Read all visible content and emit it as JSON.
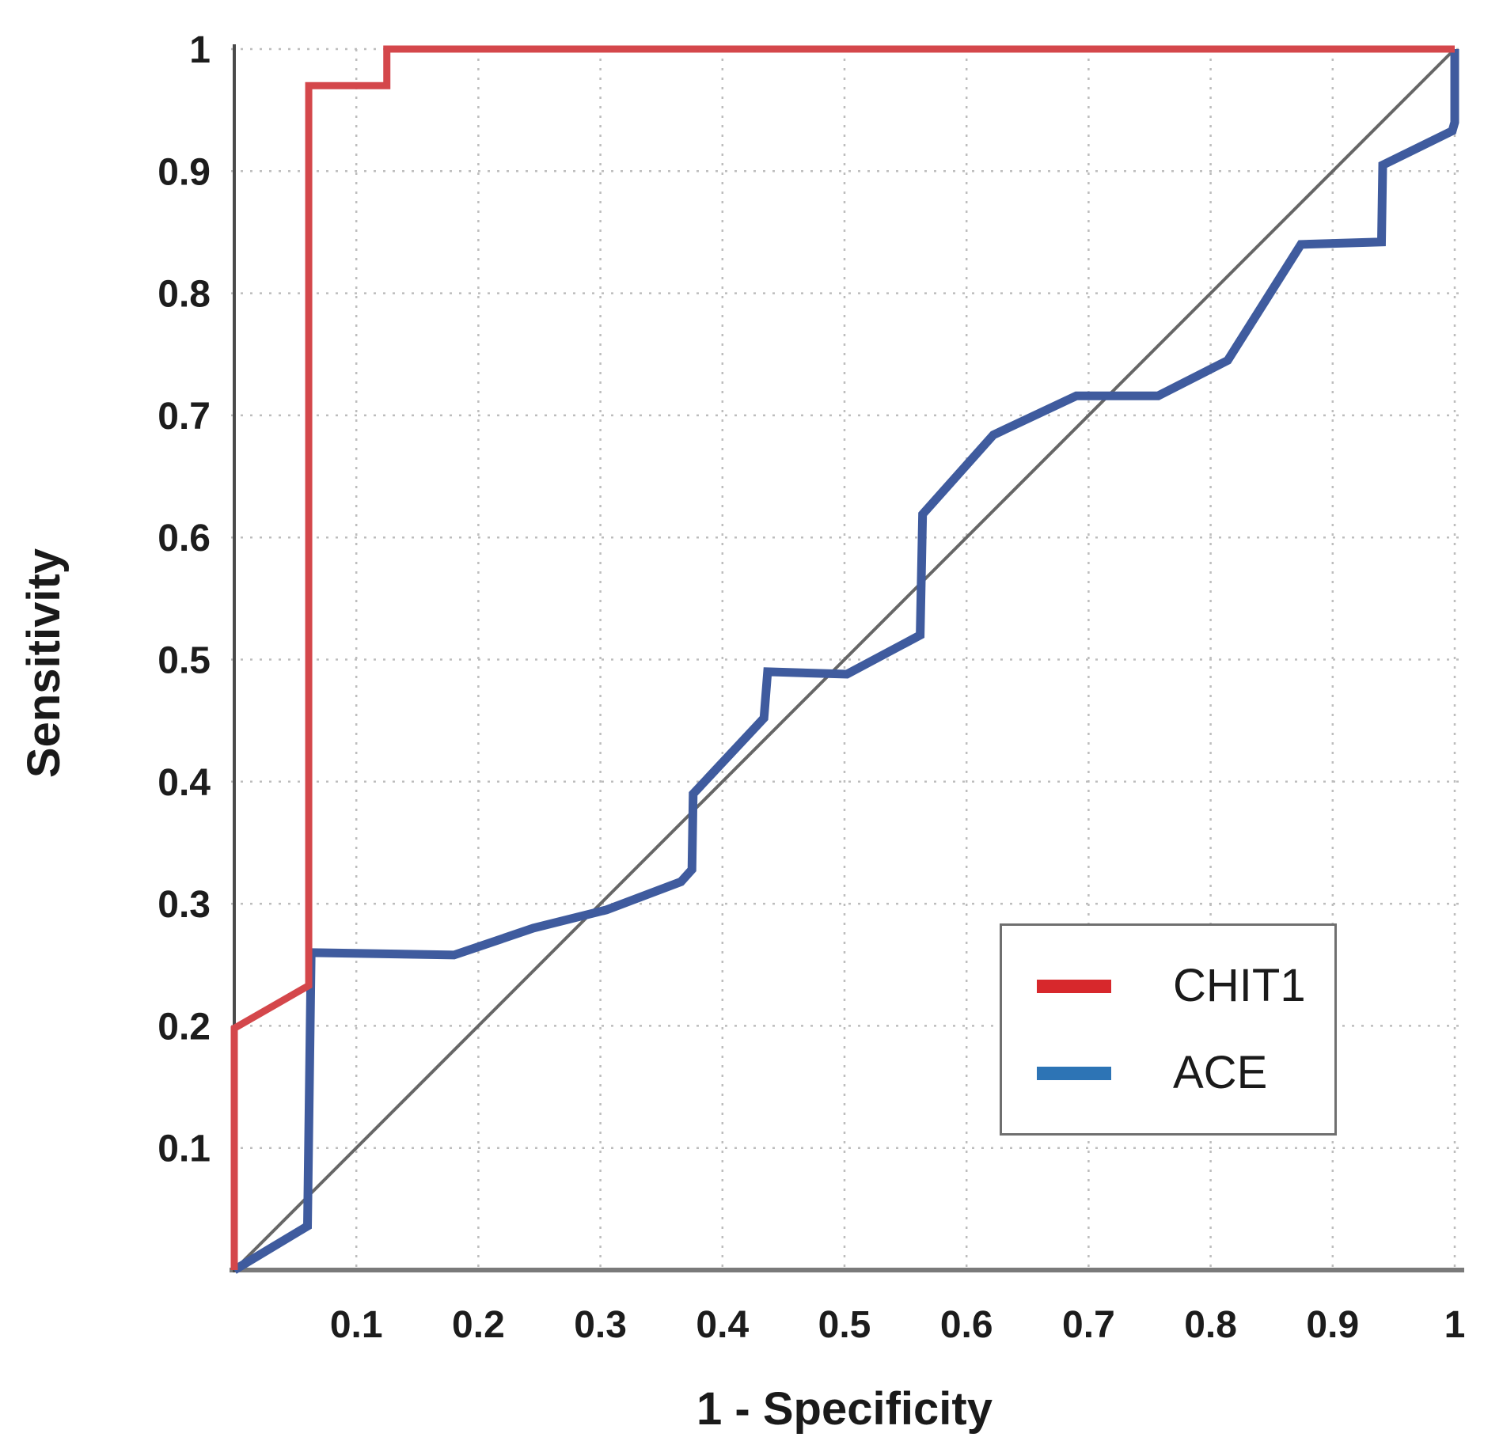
{
  "figure": {
    "background_color": "#ffffff"
  },
  "chart_data": {
    "type": "line",
    "subtype": "ROC curve",
    "title": "",
    "xlabel": "1 - Specificity",
    "ylabel": "Sensitivity",
    "xlim": [
      0,
      1
    ],
    "ylim": [
      0,
      1
    ],
    "grid": "dotted gray gridlines at 0.1 spacing on both axes",
    "x_ticks": [
      {
        "value": 0.1,
        "label": "0.1"
      },
      {
        "value": 0.2,
        "label": "0.2"
      },
      {
        "value": 0.3,
        "label": "0.3"
      },
      {
        "value": 0.4,
        "label": "0.4"
      },
      {
        "value": 0.5,
        "label": "0.5"
      },
      {
        "value": 0.6,
        "label": "0.6"
      },
      {
        "value": 0.7,
        "label": "0.7"
      },
      {
        "value": 0.8,
        "label": "0.8"
      },
      {
        "value": 0.9,
        "label": "0.9"
      },
      {
        "value": 1.0,
        "label": "1"
      }
    ],
    "y_ticks": [
      {
        "value": 0.1,
        "label": "0.1"
      },
      {
        "value": 0.2,
        "label": "0.2"
      },
      {
        "value": 0.3,
        "label": "0.3"
      },
      {
        "value": 0.4,
        "label": "0.4"
      },
      {
        "value": 0.5,
        "label": "0.5"
      },
      {
        "value": 0.6,
        "label": "0.6"
      },
      {
        "value": 0.7,
        "label": "0.7"
      },
      {
        "value": 0.8,
        "label": "0.8"
      },
      {
        "value": 0.9,
        "label": "0.9"
      },
      {
        "value": 1.0,
        "label": "1"
      }
    ],
    "diagonal": {
      "description": "chance reference line",
      "color": "#666666",
      "stroke_width": 4,
      "points": [
        [
          0,
          0
        ],
        [
          1,
          1
        ]
      ]
    },
    "series": [
      {
        "name": "CHIT1",
        "stroke": "#d4474b",
        "stroke_width": 9,
        "points": [
          [
            0,
            0
          ],
          [
            0,
            0.198
          ],
          [
            0.061,
            0.233
          ],
          [
            0.061,
            0.97
          ],
          [
            0.125,
            0.97
          ],
          [
            0.125,
            1.0
          ],
          [
            1.0,
            1.0
          ]
        ]
      },
      {
        "name": "ACE",
        "stroke": "#3f5b9e",
        "stroke_width": 11,
        "points": [
          [
            0,
            0
          ],
          [
            0.06,
            0.036
          ],
          [
            0.063,
            0.26
          ],
          [
            0.18,
            0.258
          ],
          [
            0.245,
            0.28
          ],
          [
            0.305,
            0.295
          ],
          [
            0.366,
            0.318
          ],
          [
            0.375,
            0.328
          ],
          [
            0.376,
            0.39
          ],
          [
            0.434,
            0.452
          ],
          [
            0.437,
            0.49
          ],
          [
            0.502,
            0.488
          ],
          [
            0.562,
            0.52
          ],
          [
            0.564,
            0.619
          ],
          [
            0.622,
            0.684
          ],
          [
            0.69,
            0.716
          ],
          [
            0.757,
            0.716
          ],
          [
            0.814,
            0.745
          ],
          [
            0.874,
            0.84
          ],
          [
            0.94,
            0.842
          ],
          [
            0.941,
            0.905
          ],
          [
            0.998,
            0.933
          ],
          [
            1.0,
            0.94
          ],
          [
            1.0,
            1.0
          ]
        ]
      }
    ],
    "legend": {
      "position": "lower-right",
      "entries": [
        {
          "label": "CHIT1",
          "swatch_color": "#d7282c"
        },
        {
          "label": "ACE",
          "swatch_color": "#2d74b5"
        }
      ]
    },
    "style_colors": {
      "grid_color": "#bdbdbd",
      "x_axis_color": "#7a7a7a",
      "y_axis_color": "#4a4a4a",
      "tick_label_color": "#1c1c1c",
      "axis_title_color": "#1a1a1a",
      "legend_border_color": "#6f6f6f"
    }
  }
}
